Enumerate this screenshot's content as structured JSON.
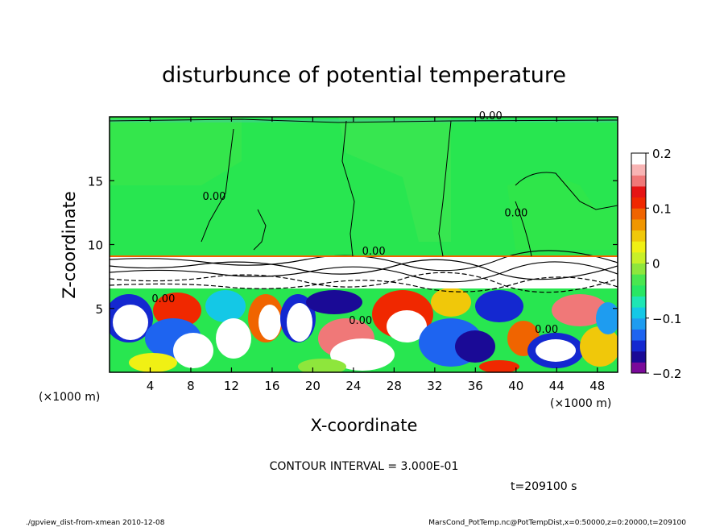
{
  "chart_data": {
    "type": "heatmap",
    "title": "disturbunce of potential temperature",
    "xlabel": "X-coordinate",
    "ylabel": "Z-coordinate",
    "x_unit": "(×1000 m)",
    "y_unit": "(×1000 m)",
    "xlim": [
      0,
      50
    ],
    "ylim": [
      0,
      20
    ],
    "x_ticks": [
      4,
      8,
      12,
      16,
      20,
      24,
      28,
      32,
      36,
      40,
      44,
      48
    ],
    "y_ticks": [
      5,
      10,
      15
    ],
    "contour_interval_text": "CONTOUR INTERVAL = 3.000E-01",
    "time_text": "t=209100 s",
    "contour_labels": [
      {
        "text": "0.00",
        "x": 37.5,
        "z": 19.8
      },
      {
        "text": "0.00",
        "x": 10.3,
        "z": 13.5
      },
      {
        "text": "0.00",
        "x": 40.0,
        "z": 12.2
      },
      {
        "text": "0.00",
        "x": 26.0,
        "z": 9.2
      },
      {
        "text": "0.00",
        "x": 5.3,
        "z": 5.5
      },
      {
        "text": "0.00",
        "x": 24.7,
        "z": 3.8
      },
      {
        "text": "0.00",
        "x": 43.0,
        "z": 3.1
      }
    ],
    "colorbar": {
      "min": -0.2,
      "max": 0.2,
      "tick_labels": [
        "0.2",
        "0.1",
        "0",
        "−0.1",
        "−0.2"
      ],
      "tick_values": [
        0.2,
        0.1,
        0,
        -0.1,
        -0.2
      ],
      "colors": [
        "#7a0a9a",
        "#1a0a96",
        "#1428d0",
        "#1e64f0",
        "#1e9cf0",
        "#14c8e6",
        "#1ee6b4",
        "#28e664",
        "#4ae650",
        "#8ee63c",
        "#c8f028",
        "#f0f014",
        "#f0c80a",
        "#f09600",
        "#f06400",
        "#f02800",
        "#e61414",
        "#f07878",
        "#f8b4b4",
        "#ffffff"
      ]
    }
  },
  "footer": {
    "left": "./gpview_dist-from-xmean   2010-12-08",
    "right": "MarsCond_PotTemp.nc@PotTempDist,x=0:50000,z=0:20000,t=209100"
  }
}
